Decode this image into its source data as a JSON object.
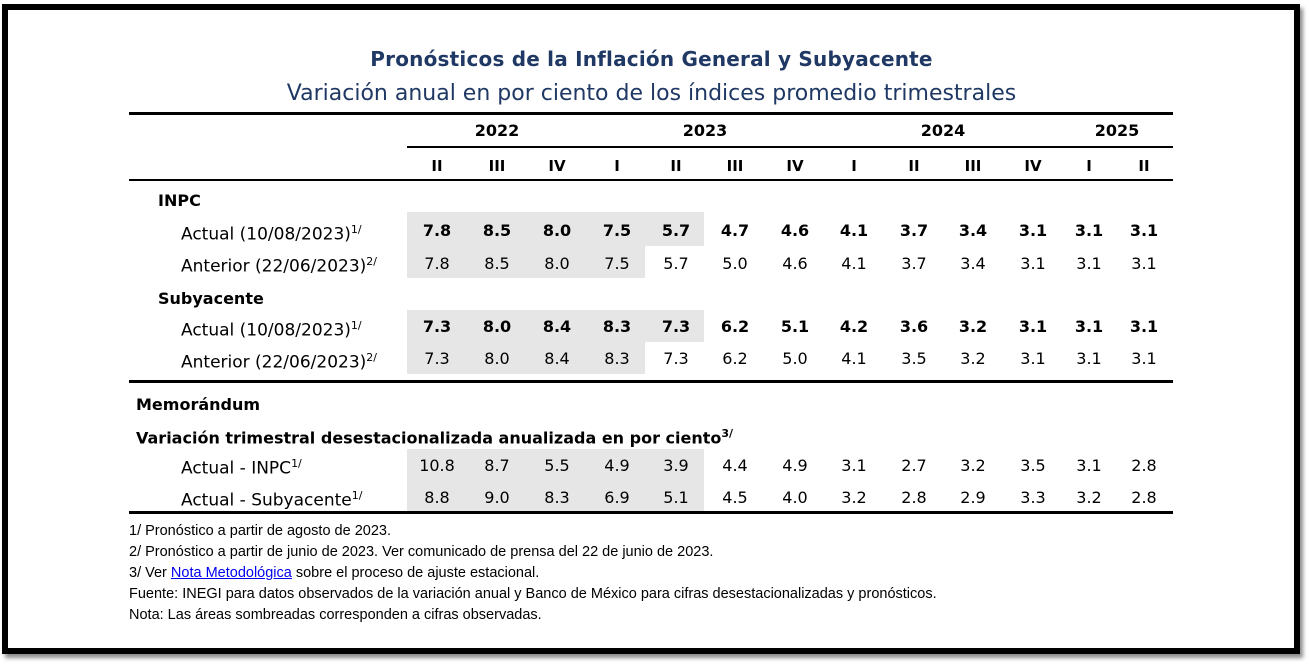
{
  "title": "Pronósticos de la Inflación General y Subyacente",
  "subtitle": "Variación anual en por ciento de los índices promedio trimestrales",
  "years": [
    "2022",
    "2023",
    "2024",
    "2025"
  ],
  "quarters": [
    "II",
    "III",
    "IV",
    "I",
    "II",
    "III",
    "IV",
    "I",
    "II",
    "III",
    "IV",
    "I",
    "II"
  ],
  "sections": {
    "inpc": "INPC",
    "subyacente": "Subyacente",
    "memorandum": "Memorándum",
    "trimestral": "Variación trimestral desestacionalizada anualizada en por ciento",
    "trimestral_sup": "3/"
  },
  "rows": {
    "inpc_actual": {
      "label": "Actual (10/08/2023)",
      "sup": "1/",
      "values": [
        "7.8",
        "8.5",
        "8.0",
        "7.5",
        "5.7",
        "4.7",
        "4.6",
        "4.1",
        "3.7",
        "3.4",
        "3.1",
        "3.1",
        "3.1"
      ]
    },
    "inpc_anterior": {
      "label": "Anterior (22/06/2023)",
      "sup": "2/",
      "values": [
        "7.8",
        "8.5",
        "8.0",
        "7.5",
        "5.7",
        "5.0",
        "4.6",
        "4.1",
        "3.7",
        "3.4",
        "3.1",
        "3.1",
        "3.1"
      ]
    },
    "sub_actual": {
      "label": "Actual (10/08/2023)",
      "sup": "1/",
      "values": [
        "7.3",
        "8.0",
        "8.4",
        "8.3",
        "7.3",
        "6.2",
        "5.1",
        "4.2",
        "3.6",
        "3.2",
        "3.1",
        "3.1",
        "3.1"
      ]
    },
    "sub_anterior": {
      "label": "Anterior (22/06/2023)",
      "sup": "2/",
      "values": [
        "7.3",
        "8.0",
        "8.4",
        "8.3",
        "7.3",
        "6.2",
        "5.0",
        "4.1",
        "3.5",
        "3.2",
        "3.1",
        "3.1",
        "3.1"
      ]
    },
    "mem_inpc": {
      "label": "Actual - INPC",
      "sup": "1/",
      "values": [
        "10.8",
        "8.7",
        "5.5",
        "4.9",
        "3.9",
        "4.4",
        "4.9",
        "3.1",
        "2.7",
        "3.2",
        "3.5",
        "3.1",
        "2.8"
      ]
    },
    "mem_sub": {
      "label": "Actual - Subyacente",
      "sup": "1/",
      "values": [
        "8.8",
        "9.0",
        "8.3",
        "6.9",
        "5.1",
        "4.5",
        "4.0",
        "3.2",
        "2.8",
        "2.9",
        "3.3",
        "3.2",
        "2.8"
      ]
    }
  },
  "notes": {
    "n1": "1/ Pronóstico a partir de agosto de 2023.",
    "n2": "2/ Pronóstico a partir de junio de 2023. Ver comunicado de prensa del 22 de junio de 2023.",
    "n3_prefix": "3/ Ver ",
    "n3_link": "Nota Metodológica",
    "n3_suffix": " sobre el proceso de ajuste estacional.",
    "fuente": "Fuente: INEGI para datos observados de la variación anual y Banco de México para cifras desestacionalizadas y pronósticos.",
    "nota": "Nota: Las áreas sombreadas corresponden a cifras observadas."
  },
  "colors": {
    "title": "#1f3864",
    "shade": "#e7e6e6",
    "link": "#0000ee"
  }
}
